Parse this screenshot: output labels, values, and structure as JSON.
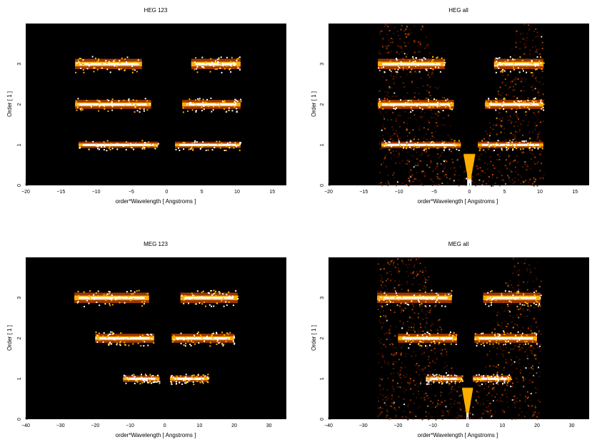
{
  "figure": {
    "panels_note": "",
    "colors": {
      "background": "#000000",
      "low": "#5a1400",
      "mid": "#d24a00",
      "high": "#ffb000",
      "peak": "#ffffff"
    }
  },
  "chart_data": [
    {
      "type": "heatmap",
      "title": "HEG 123",
      "xlabel": "order*Wavelength [ Angstroms ]",
      "ylabel": "Order [ 1 ]",
      "xlim": [
        -20,
        17
      ],
      "ylim": [
        0,
        4
      ],
      "xticks": [
        -20,
        -15,
        -10,
        -5,
        0,
        5,
        10,
        15
      ],
      "yticks": [
        0,
        1,
        2,
        3
      ],
      "grid": false,
      "bands": [
        {
          "order": 1,
          "ranges": [
            [
              -12.5,
              -1.2
            ],
            [
              1.2,
              10.5
            ]
          ],
          "spread": 0.05
        },
        {
          "order": 2,
          "ranges": [
            [
              -13.0,
              -2.2
            ],
            [
              2.2,
              10.5
            ]
          ],
          "spread": 0.07
        },
        {
          "order": 3,
          "ranges": [
            [
              -13.0,
              -3.5
            ],
            [
              3.5,
              10.5
            ]
          ],
          "spread": 0.08
        }
      ],
      "background_scatter": false
    },
    {
      "type": "heatmap",
      "title": "HEG all",
      "xlabel": "order*Wavelength [ Angstroms ]",
      "ylabel": "Order [ 1 ]",
      "xlim": [
        -20,
        17
      ],
      "ylim": [
        0,
        4
      ],
      "xticks": [
        -20,
        -15,
        -10,
        -5,
        0,
        5,
        10,
        15
      ],
      "yticks": [
        0,
        1,
        2,
        3
      ],
      "grid": false,
      "bands": [
        {
          "order": 1,
          "ranges": [
            [
              -12.5,
              -1.2
            ],
            [
              1.2,
              10.5
            ]
          ],
          "spread": 0.05
        },
        {
          "order": 2,
          "ranges": [
            [
              -13.0,
              -2.2
            ],
            [
              2.2,
              10.5
            ]
          ],
          "spread": 0.07
        },
        {
          "order": 3,
          "ranges": [
            [
              -13.0,
              -3.5
            ],
            [
              3.5,
              10.5
            ]
          ],
          "spread": 0.08
        }
      ],
      "background_scatter": true,
      "scatter_xrange": [
        -13,
        10.5
      ],
      "gap_slope": 4.2
    },
    {
      "type": "heatmap",
      "title": "MEG 123",
      "xlabel": "order*Wavelength [ Angstroms ]",
      "ylabel": "Order [ 1 ]",
      "xlim": [
        -40,
        35
      ],
      "ylim": [
        0,
        4
      ],
      "xticks": [
        -40,
        -30,
        -20,
        -10,
        0,
        10,
        20,
        30
      ],
      "yticks": [
        0,
        1,
        2,
        3
      ],
      "grid": false,
      "bands": [
        {
          "order": 1,
          "ranges": [
            [
              -12.0,
              -1.5
            ],
            [
              1.5,
              12.5
            ]
          ],
          "spread": 0.05
        },
        {
          "order": 2,
          "ranges": [
            [
              -20.0,
              -3.0
            ],
            [
              2.0,
              20.0
            ]
          ],
          "spread": 0.07
        },
        {
          "order": 3,
          "ranges": [
            [
              -26.0,
              -4.5
            ],
            [
              4.5,
              21.0
            ]
          ],
          "spread": 0.08
        }
      ],
      "background_scatter": false
    },
    {
      "type": "heatmap",
      "title": "MEG all",
      "xlabel": "order*Wavelength [ Angstroms ]",
      "ylabel": "Order [ 1 ]",
      "xlim": [
        -40,
        35
      ],
      "ylim": [
        0,
        4
      ],
      "xticks": [
        -40,
        -30,
        -20,
        -10,
        0,
        10,
        20,
        30
      ],
      "yticks": [
        0,
        1,
        2,
        3
      ],
      "grid": false,
      "bands": [
        {
          "order": 1,
          "ranges": [
            [
              -12.0,
              -1.5
            ],
            [
              1.5,
              12.5
            ]
          ],
          "spread": 0.05
        },
        {
          "order": 2,
          "ranges": [
            [
              -20.0,
              -3.0
            ],
            [
              2.0,
              20.0
            ]
          ],
          "spread": 0.07
        },
        {
          "order": 3,
          "ranges": [
            [
              -26.0,
              -4.5
            ],
            [
              4.5,
              21.0
            ]
          ],
          "spread": 0.08
        }
      ],
      "background_scatter": true,
      "scatter_xrange": [
        -26,
        21
      ],
      "gap_slope": 8.0
    }
  ]
}
